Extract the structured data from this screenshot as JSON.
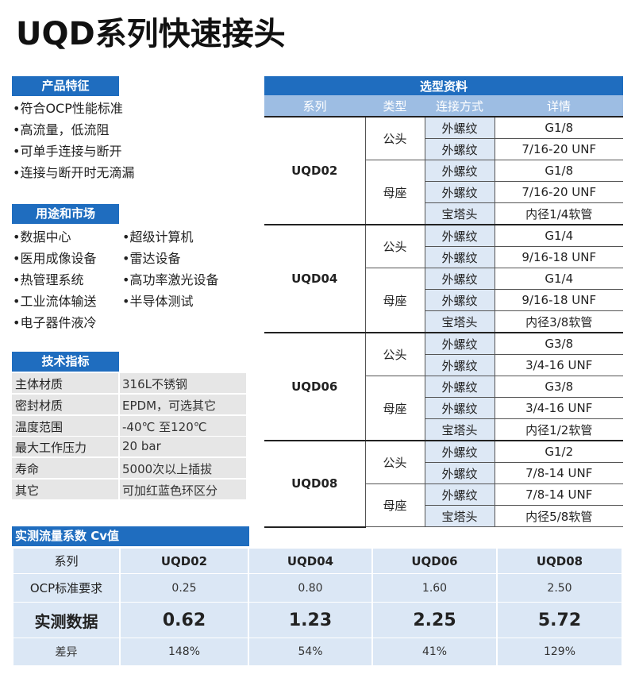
{
  "title": "UQD系列快速接头",
  "features": {
    "heading": "产品特征",
    "items": [
      "•符合OCP性能标准",
      "•高流量，低流阻",
      "•可单手连接与断开",
      "•连接与断开时无滴漏"
    ]
  },
  "applications": {
    "heading": "用途和市场",
    "columns": [
      [
        "•数据中心",
        "•医用成像设备",
        "•热管理系统",
        "•工业流体输送",
        "•电子器件液冷"
      ],
      [
        "•超级计算机",
        "•雷达设备",
        "•高功率激光设备",
        "•半导体测试"
      ]
    ]
  },
  "specs": {
    "heading": "技术指标",
    "rows": [
      [
        "主体材质",
        "316L不锈钢"
      ],
      [
        "密封材质",
        "EPDM，可选其它"
      ],
      [
        "温度范围",
        "-40℃ 至120℃"
      ],
      [
        "最大工作压力",
        "20 bar"
      ],
      [
        "寿命",
        "5000次以上插拔"
      ],
      [
        "其它",
        "可加红蓝色环区分"
      ]
    ]
  },
  "selection": {
    "title": "选型资料",
    "columns": [
      "系列",
      "类型",
      "连接方式",
      "详情"
    ],
    "groups": [
      {
        "series": "UQD02",
        "types": [
          {
            "type": "公头",
            "rows": [
              [
                "外螺纹",
                "G1/8"
              ],
              [
                "外螺纹",
                "7/16-20 UNF"
              ]
            ]
          },
          {
            "type": "母座",
            "rows": [
              [
                "外螺纹",
                "G1/8"
              ],
              [
                "外螺纹",
                "7/16-20 UNF"
              ],
              [
                "宝塔头",
                "内径1/4软管"
              ]
            ]
          }
        ]
      },
      {
        "series": "UQD04",
        "types": [
          {
            "type": "公头",
            "rows": [
              [
                "外螺纹",
                "G1/4"
              ],
              [
                "外螺纹",
                "9/16-18 UNF"
              ]
            ]
          },
          {
            "type": "母座",
            "rows": [
              [
                "外螺纹",
                "G1/4"
              ],
              [
                "外螺纹",
                "9/16-18 UNF"
              ],
              [
                "宝塔头",
                "内径3/8软管"
              ]
            ]
          }
        ]
      },
      {
        "series": "UQD06",
        "types": [
          {
            "type": "公头",
            "rows": [
              [
                "外螺纹",
                "G3/8"
              ],
              [
                "外螺纹",
                "3/4-16 UNF"
              ]
            ]
          },
          {
            "type": "母座",
            "rows": [
              [
                "外螺纹",
                "G3/8"
              ],
              [
                "外螺纹",
                "3/4-16 UNF"
              ],
              [
                "宝塔头",
                "内径1/2软管"
              ]
            ]
          }
        ]
      },
      {
        "series": "UQD08",
        "types": [
          {
            "type": "公头",
            "rows": [
              [
                "外螺纹",
                "G1/2"
              ],
              [
                "外螺纹",
                "7/8-14 UNF"
              ]
            ]
          },
          {
            "type": "母座",
            "rows": [
              [
                "外螺纹",
                "7/8-14 UNF"
              ],
              [
                "宝塔头",
                "内径5/8软管"
              ]
            ]
          }
        ]
      }
    ]
  },
  "cv": {
    "heading": "实测流量系数 Cv值",
    "rows": [
      [
        "系列",
        "UQD02",
        "UQD04",
        "UQD06",
        "UQD08"
      ],
      [
        "OCP标准要求",
        "0.25",
        "0.80",
        "1.60",
        "2.50"
      ],
      [
        "实测数据",
        "0.62",
        "1.23",
        "2.25",
        "5.72"
      ],
      [
        "差异",
        "148%",
        "54%",
        "41%",
        "129%"
      ]
    ]
  }
}
